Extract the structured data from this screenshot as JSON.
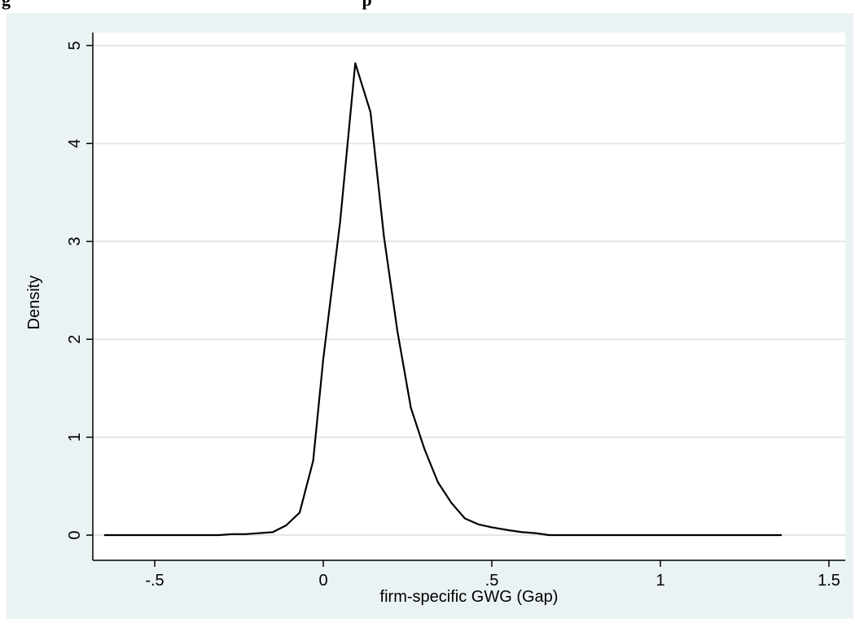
{
  "caption_fragment": "g",
  "caption_fragment_2": "p",
  "chart_data": {
    "type": "line",
    "xlabel": "firm-specific GWG (Gap)",
    "ylabel": "Density",
    "xlim": [
      -0.65,
      1.45
    ],
    "ylim": [
      0,
      5.1
    ],
    "xticks": [
      -0.5,
      0,
      0.5,
      1,
      1.5
    ],
    "xtick_labels": [
      "-.5",
      "0",
      ".5",
      "1",
      "1.5"
    ],
    "yticks": [
      0,
      1,
      2,
      3,
      4,
      5
    ],
    "ytick_labels": [
      "0",
      "1",
      "2",
      "3",
      "4",
      "5"
    ],
    "grid": true,
    "series": [
      {
        "x": [
          -0.65,
          -0.31,
          -0.27,
          -0.23,
          -0.15,
          -0.11,
          -0.07,
          -0.03,
          0.0,
          0.05,
          0.095,
          0.14,
          0.18,
          0.22,
          0.26,
          0.3,
          0.34,
          0.38,
          0.42,
          0.46,
          0.5,
          0.55,
          0.59,
          0.63,
          0.67,
          1.36
        ],
        "y": [
          0,
          0,
          0.01,
          0.01,
          0.03,
          0.1,
          0.23,
          0.76,
          1.8,
          3.2,
          4.82,
          4.32,
          3.05,
          2.08,
          1.3,
          0.88,
          0.54,
          0.33,
          0.17,
          0.11,
          0.08,
          0.05,
          0.03,
          0.02,
          0.0,
          0.0
        ]
      }
    ]
  }
}
